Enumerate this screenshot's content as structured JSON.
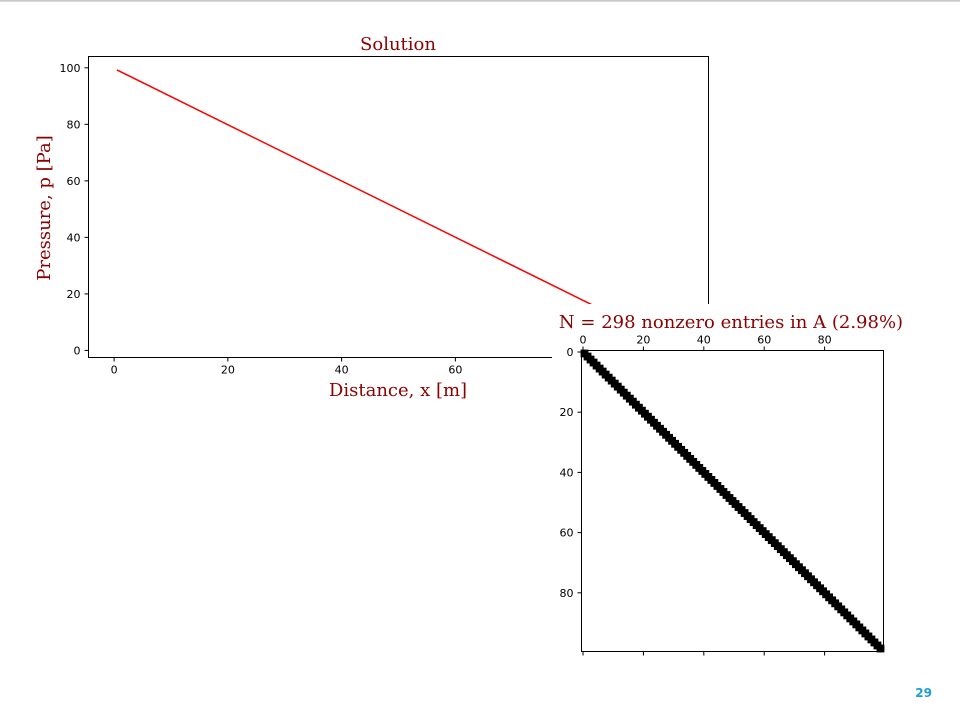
{
  "page": {
    "number": "29"
  },
  "chart_data": [
    {
      "type": "line",
      "title": "Solution",
      "xlabel": "Distance, x [m]",
      "ylabel": "Pressure, p [Pa]",
      "xlim": [
        -4.5,
        104.5
      ],
      "ylim": [
        -2.5,
        104
      ],
      "xticks": [
        0,
        20,
        40,
        60
      ],
      "yticks": [
        0,
        20,
        40,
        60,
        80,
        100
      ],
      "grid": false,
      "colors": {
        "line": "#ff0000",
        "title": "#8b0000"
      },
      "series": [
        {
          "x": [
            0.5,
            99.5
          ],
          "y": [
            99.25,
            0.75
          ]
        }
      ]
    },
    {
      "type": "heatmap",
      "title": "N = 298 nonzero entries in A (2.98%)",
      "matrix_size": 100,
      "nonzeros": 298,
      "pattern": "tridiagonal",
      "xticks": [
        0,
        20,
        40,
        60,
        80
      ],
      "yticks": [
        0,
        20,
        40,
        60,
        80
      ],
      "grid": false,
      "colors": {
        "marker": "#000000",
        "title": "#8b0000"
      }
    }
  ]
}
